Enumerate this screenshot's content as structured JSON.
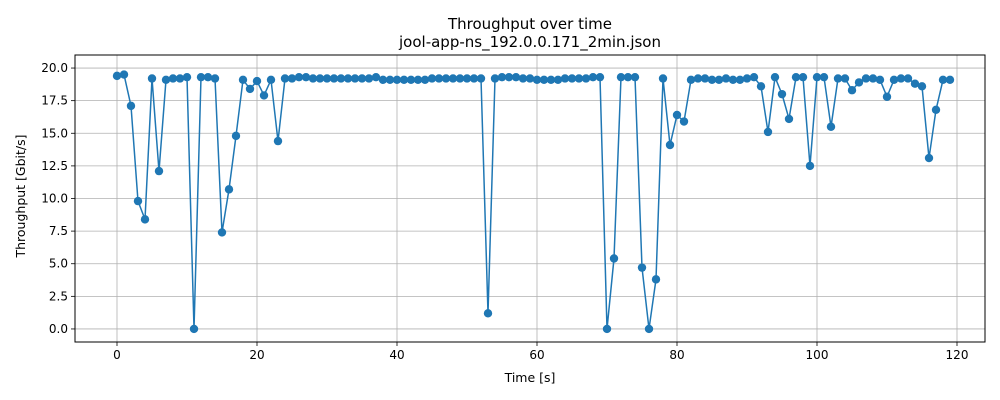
{
  "chart_data": {
    "type": "line",
    "title": "Throughput over time",
    "subtitle": "jool-app-ns_192.0.0.171_2min.json",
    "xlabel": "Time [s]",
    "ylabel": "Throughput [Gbit/s]",
    "xlim": [
      -6,
      124
    ],
    "ylim": [
      -1,
      21
    ],
    "xticks": [
      0,
      20,
      40,
      60,
      80,
      100,
      120
    ],
    "yticks": [
      0.0,
      2.5,
      5.0,
      7.5,
      10.0,
      12.5,
      15.0,
      17.5,
      20.0
    ],
    "ytick_labels": [
      "0.0",
      "2.5",
      "5.0",
      "7.5",
      "10.0",
      "12.5",
      "15.0",
      "17.5",
      "20.0"
    ],
    "grid": true,
    "marker": "circle",
    "color": "#1f77b4",
    "series": [
      {
        "x": [
          0,
          1,
          2,
          3,
          4,
          5,
          6,
          7,
          8,
          9,
          10,
          11,
          12,
          13,
          14,
          15,
          16,
          17,
          18,
          19,
          20,
          21,
          22,
          23,
          24,
          25,
          26,
          27,
          28,
          29,
          30,
          31,
          32,
          33,
          34,
          35,
          36,
          37,
          38,
          39,
          40,
          41,
          42,
          43,
          44,
          45,
          46,
          47,
          48,
          49,
          50,
          51,
          52,
          53,
          54,
          55,
          56,
          57,
          58,
          59,
          60,
          61,
          62,
          63,
          64,
          65,
          66,
          67,
          68,
          69,
          70,
          71,
          72,
          73,
          74,
          75,
          76,
          77,
          78,
          79,
          80,
          81,
          82,
          83,
          84,
          85,
          86,
          87,
          88,
          89,
          90,
          91,
          92,
          93,
          94,
          95,
          96,
          97,
          98,
          99,
          100,
          101,
          102,
          103,
          104,
          105,
          106,
          107,
          108,
          109,
          110,
          111,
          112,
          113,
          114,
          115,
          116,
          117,
          118,
          119
        ],
        "values": [
          19.4,
          19.5,
          17.1,
          9.8,
          8.4,
          19.2,
          12.1,
          19.1,
          19.2,
          19.2,
          19.3,
          0.0,
          19.3,
          19.3,
          19.2,
          7.4,
          10.7,
          14.8,
          19.1,
          18.4,
          19.0,
          17.9,
          19.1,
          14.4,
          19.2,
          19.2,
          19.3,
          19.3,
          19.2,
          19.2,
          19.2,
          19.2,
          19.2,
          19.2,
          19.2,
          19.2,
          19.2,
          19.3,
          19.1,
          19.1,
          19.1,
          19.1,
          19.1,
          19.1,
          19.1,
          19.2,
          19.2,
          19.2,
          19.2,
          19.2,
          19.2,
          19.2,
          19.2,
          1.2,
          19.2,
          19.3,
          19.3,
          19.3,
          19.2,
          19.2,
          19.1,
          19.1,
          19.1,
          19.1,
          19.2,
          19.2,
          19.2,
          19.2,
          19.3,
          19.3,
          0.0,
          5.4,
          19.3,
          19.3,
          19.3,
          4.7,
          0.0,
          3.8,
          19.2,
          14.1,
          16.4,
          15.9,
          19.1,
          19.2,
          19.2,
          19.1,
          19.1,
          19.2,
          19.1,
          19.1,
          19.2,
          19.3,
          18.6,
          15.1,
          19.3,
          18.0,
          16.1,
          19.3,
          19.3,
          12.5,
          19.3,
          19.3,
          15.5,
          19.2,
          19.2,
          18.3,
          18.9,
          19.2,
          19.2,
          19.1,
          17.8,
          19.1,
          19.2,
          19.2,
          18.8,
          18.6,
          13.1,
          16.8,
          19.1,
          19.1
        ]
      }
    ]
  }
}
